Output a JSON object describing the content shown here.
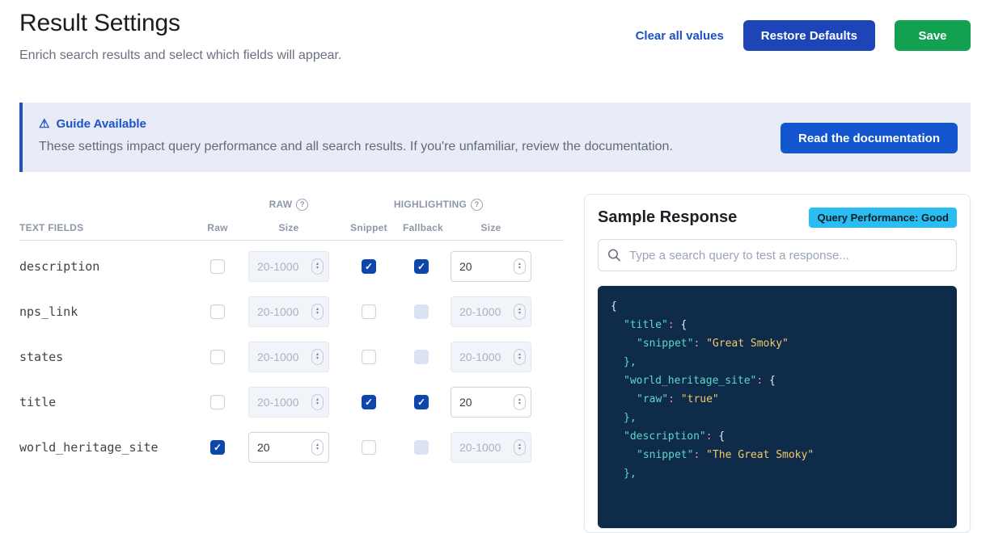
{
  "page": {
    "title": "Result Settings",
    "subtitle": "Enrich search results and select which fields will appear."
  },
  "actions": {
    "clear_label": "Clear all values",
    "restore_label": "Restore Defaults",
    "save_label": "Save"
  },
  "banner": {
    "title": "Guide Available",
    "body": "These settings impact query performance and all search results. If you're unfamiliar, review the documentation.",
    "button_label": "Read the documentation"
  },
  "table": {
    "group_headers": {
      "raw": "RAW",
      "highlighting": "HIGHLIGHTING"
    },
    "columns": {
      "text_fields": "TEXT FIELDS",
      "raw": "Raw",
      "raw_size": "Size",
      "snippet": "Snippet",
      "fallback": "Fallback",
      "highlight_size": "Size"
    },
    "size_placeholder": "20-1000",
    "rows": [
      {
        "field": "description",
        "raw_checked": false,
        "raw_size_value": "",
        "raw_size_disabled": true,
        "snippet_checked": true,
        "fallback_checked": true,
        "fallback_disabled": false,
        "hl_size_value": "20",
        "hl_size_disabled": false
      },
      {
        "field": "nps_link",
        "raw_checked": false,
        "raw_size_value": "",
        "raw_size_disabled": true,
        "snippet_checked": false,
        "fallback_checked": false,
        "fallback_disabled": true,
        "hl_size_value": "",
        "hl_size_disabled": true
      },
      {
        "field": "states",
        "raw_checked": false,
        "raw_size_value": "",
        "raw_size_disabled": true,
        "snippet_checked": false,
        "fallback_checked": false,
        "fallback_disabled": true,
        "hl_size_value": "",
        "hl_size_disabled": true
      },
      {
        "field": "title",
        "raw_checked": false,
        "raw_size_value": "",
        "raw_size_disabled": true,
        "snippet_checked": true,
        "fallback_checked": true,
        "fallback_disabled": false,
        "hl_size_value": "20",
        "hl_size_disabled": false
      },
      {
        "field": "world_heritage_site",
        "raw_checked": true,
        "raw_size_value": "20",
        "raw_size_disabled": false,
        "snippet_checked": false,
        "fallback_checked": false,
        "fallback_disabled": true,
        "hl_size_value": "",
        "hl_size_disabled": true
      }
    ]
  },
  "sample": {
    "title": "Sample Response",
    "badge": "Query Performance: Good",
    "search_placeholder": "Type a search query to test a response...",
    "code": [
      {
        "indent": 0,
        "segments": [
          {
            "t": "{",
            "c": "plain"
          }
        ]
      },
      {
        "indent": 1,
        "segments": [
          {
            "t": "\"title\"",
            "c": "key"
          },
          {
            "t": ": ",
            "c": "colon"
          },
          {
            "t": "{",
            "c": "plain"
          }
        ]
      },
      {
        "indent": 2,
        "segments": [
          {
            "t": "\"snippet\"",
            "c": "key"
          },
          {
            "t": ": ",
            "c": "colon"
          },
          {
            "t": "\"Great Smoky\"",
            "c": "str"
          }
        ]
      },
      {
        "indent": 1,
        "segments": [
          {
            "t": "},",
            "c": "key"
          }
        ]
      },
      {
        "indent": 1,
        "segments": [
          {
            "t": "\"world_heritage_site\"",
            "c": "key"
          },
          {
            "t": ": ",
            "c": "colon"
          },
          {
            "t": "{",
            "c": "plain"
          }
        ]
      },
      {
        "indent": 2,
        "segments": [
          {
            "t": "\"raw\"",
            "c": "key"
          },
          {
            "t": ": ",
            "c": "colon"
          },
          {
            "t": "\"true\"",
            "c": "str"
          }
        ]
      },
      {
        "indent": 1,
        "segments": [
          {
            "t": "},",
            "c": "key"
          }
        ]
      },
      {
        "indent": 1,
        "segments": [
          {
            "t": "\"description\"",
            "c": "key"
          },
          {
            "t": ": ",
            "c": "colon"
          },
          {
            "t": "{",
            "c": "plain"
          }
        ]
      },
      {
        "indent": 2,
        "segments": [
          {
            "t": "\"snippet\"",
            "c": "key"
          },
          {
            "t": ": ",
            "c": "colon"
          },
          {
            "t": "\"The Great Smoky\"",
            "c": "str"
          }
        ]
      },
      {
        "indent": 1,
        "segments": [
          {
            "t": "},",
            "c": "key"
          }
        ]
      }
    ]
  },
  "icons": {
    "warning": "⚠",
    "help": "?",
    "check": "✓",
    "step_up": "▴",
    "step_down": "▾"
  },
  "colors": {
    "link_blue": "#1d51c4",
    "restore_button_blue": "#1d45b8",
    "docs_button_blue": "#1456cf",
    "save_green": "#12a150",
    "checkbox_blue": "#0d47ad",
    "badge_cyan": "#2bbdf2",
    "banner_bg": "#e7ecf7",
    "banner_border": "#2355b4",
    "code_bg": "#0e2b49",
    "code_key": "#5ed8cc",
    "code_string": "#f2c968"
  }
}
